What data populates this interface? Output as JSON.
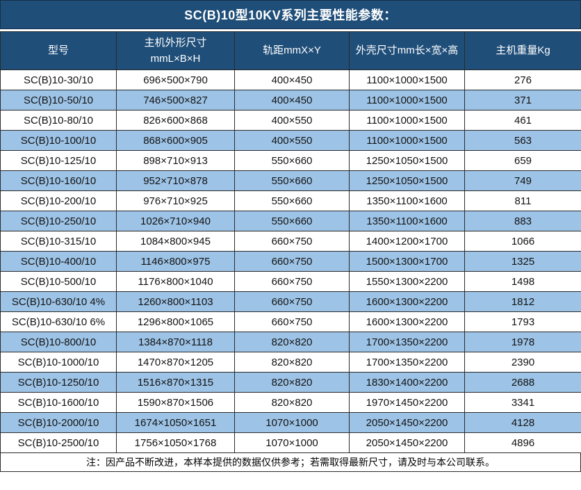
{
  "title": "SC(B)10型10KV系列主要性能参数：",
  "colors": {
    "title_bg": "#1F4E79",
    "header_bg": "#1F4E79",
    "stripe_row_bg": "#9DC3E6",
    "border": "#2a2a2a",
    "cell_text": "#121212",
    "header_text": "#ffffff"
  },
  "table": {
    "columns": [
      "型号",
      "主机外形尺寸\nmmL×B×H",
      "轨距mmX×Y",
      "外壳尺寸mm长×宽×高",
      "主机重量Kg"
    ],
    "rows": [
      [
        "SC(B)10-30/10",
        "696×500×790",
        "400×450",
        "1100×1000×1500",
        "276"
      ],
      [
        "SC(B)10-50/10",
        "746×500×827",
        "400×450",
        "1100×1000×1500",
        "371"
      ],
      [
        "SC(B)10-80/10",
        "826×600×868",
        "400×550",
        "1100×1000×1500",
        "461"
      ],
      [
        "SC(B)10-100/10",
        "868×600×905",
        "400×550",
        "1100×1000×1500",
        "563"
      ],
      [
        "SC(B)10-125/10",
        "898×710×913",
        "550×660",
        "1250×1050×1500",
        "659"
      ],
      [
        "SC(B)10-160/10",
        "952×710×878",
        "550×660",
        "1250×1050×1500",
        "749"
      ],
      [
        "SC(B)10-200/10",
        "976×710×925",
        "550×660",
        "1350×1100×1600",
        "811"
      ],
      [
        "SC(B)10-250/10",
        "1026×710×940",
        "550×660",
        "1350×1100×1600",
        "883"
      ],
      [
        "SC(B)10-315/10",
        "1084×800×945",
        "660×750",
        "1400×1200×1700",
        "1066"
      ],
      [
        "SC(B)10-400/10",
        "1146×800×975",
        "660×750",
        "1500×1300×1700",
        "1325"
      ],
      [
        "SC(B)10-500/10",
        "1176×800×1040",
        "660×750",
        "1550×1300×2200",
        "1498"
      ],
      [
        "SC(B)10-630/10 4%",
        "1260×800×1103",
        "660×750",
        "1600×1300×2200",
        "1812"
      ],
      [
        "SC(B)10-630/10 6%",
        "1296×800×1065",
        "660×750",
        "1600×1300×2200",
        "1793"
      ],
      [
        "SC(B)10-800/10",
        "1384×870×1118",
        "820×820",
        "1700×1350×2200",
        "1978"
      ],
      [
        "SC(B)10-1000/10",
        "1470×870×1205",
        "820×820",
        "1700×1350×2200",
        "2390"
      ],
      [
        "SC(B)10-1250/10",
        "1516×870×1315",
        "820×820",
        "1830×1400×2200",
        "2688"
      ],
      [
        "SC(B)10-1600/10",
        "1590×870×1506",
        "820×820",
        "1970×1450×2200",
        "3341"
      ],
      [
        "SC(B)10-2000/10",
        "1674×1050×1651",
        "1070×1000",
        "2050×1450×2200",
        "4128"
      ],
      [
        "SC(B)10-2500/10",
        "1756×1050×1768",
        "1070×1000",
        "2050×1450×2200",
        "4896"
      ]
    ]
  },
  "footnote": "注：因产品不断改进，本样本提供的数据仅供参考；若需取得最新尺寸，请及时与本公司联系。"
}
